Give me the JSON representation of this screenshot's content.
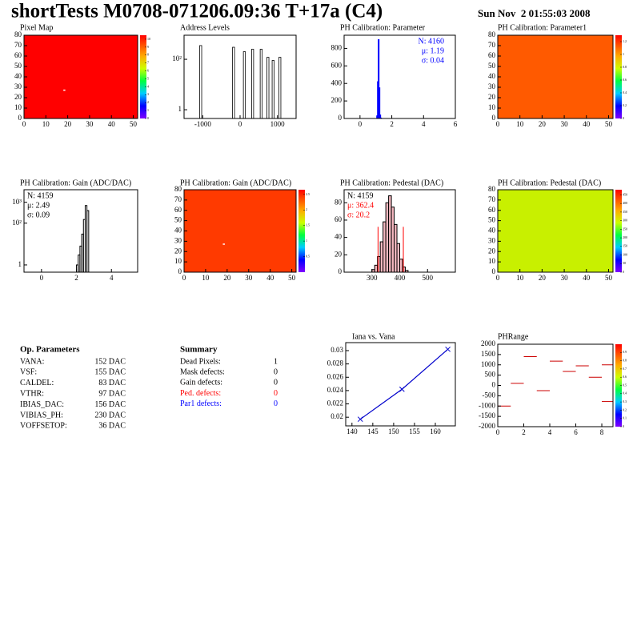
{
  "header": {
    "title": "shortTests M0708-071206.09:36 T+17a (C4)",
    "date": "Sun Nov  2 01:55:03 2008"
  },
  "chart_data": [
    {
      "type": "heatmap",
      "title": "Pixel Map",
      "xlim": [
        0,
        52
      ],
      "ylim": [
        0,
        80
      ],
      "xticks": [
        0,
        10,
        20,
        30,
        40,
        50
      ],
      "yticks": [
        0,
        10,
        20,
        30,
        40,
        50,
        60,
        70,
        80
      ],
      "color": "#ff0000",
      "points": [
        [
          18,
          27
        ]
      ],
      "zlim": [
        0,
        10.5
      ],
      "zticks": [
        0,
        1,
        2,
        3,
        4,
        5,
        6,
        7,
        8,
        9,
        10
      ]
    },
    {
      "type": "spikes",
      "title": "Address Levels",
      "log": true,
      "xlim": [
        -1500,
        1500
      ],
      "ylim": [
        0.45,
        900
      ],
      "xticks": [
        -1000,
        0,
        1000
      ],
      "yticks": [
        1,
        {
          "value": 100,
          "label": "10²"
        }
      ],
      "color": "#000000",
      "x": [
        -1060,
        -180,
        110,
        330,
        560,
        740,
        880,
        1060
      ],
      "values": [
        350,
        300,
        200,
        250,
        250,
        120,
        90,
        120
      ]
    },
    {
      "type": "histogram",
      "title": "PH Calibration: Parameter",
      "xlim": [
        -1,
        6
      ],
      "ylim": [
        0,
        950
      ],
      "xticks": [
        0,
        2,
        4,
        6
      ],
      "yticks": [
        0,
        200,
        400,
        600,
        800
      ],
      "color": "#0000ff",
      "bins": [
        1.05,
        1.1,
        1.15,
        1.2,
        1.25,
        1.3,
        1.35
      ],
      "values": [
        30,
        420,
        900,
        350,
        40,
        5
      ],
      "stats_corner": "right",
      "stats": [
        {
          "text": "N: 4160",
          "color": "#0000ff"
        },
        {
          "text": "μ: 1.19",
          "color": "#0000ff"
        },
        {
          "text": "σ: 0.04",
          "color": "#0000ff"
        }
      ]
    },
    {
      "type": "heatmap",
      "title": "PH Calibration: Parameter1",
      "xlim": [
        0,
        52
      ],
      "ylim": [
        0,
        80
      ],
      "xticks": [
        0,
        10,
        20,
        30,
        40,
        50
      ],
      "yticks": [
        0,
        10,
        20,
        30,
        40,
        50,
        60,
        70,
        80
      ],
      "color": "#ff5a00",
      "zlim": [
        0,
        1.3
      ],
      "zticks": [
        0,
        0.2,
        0.4,
        0.6,
        0.8,
        1,
        1.2
      ]
    },
    {
      "type": "histogram",
      "title": "PH Calibration: Gain (ADC/DAC)",
      "log": true,
      "xlim": [
        -1,
        5.5
      ],
      "ylim": [
        0.45,
        4000
      ],
      "xticks": [
        0,
        2,
        4
      ],
      "yticks": [
        1,
        {
          "value": 100,
          "label": "10²"
        },
        {
          "value": 1000,
          "label": "10³"
        }
      ],
      "color": "#000000",
      "bins": [
        2.0,
        2.1,
        2.2,
        2.3,
        2.4,
        2.5,
        2.6,
        2.7
      ],
      "values": [
        1,
        3,
        8,
        30,
        150,
        700,
        400
      ],
      "stats_corner": "left",
      "stats": [
        {
          "text": "N: 4159",
          "color": "#000000"
        },
        {
          "text": "μ: 2.49",
          "color": "#000000"
        },
        {
          "text": "σ: 0.09",
          "color": "#000000"
        }
      ]
    },
    {
      "type": "heatmap",
      "title": "PH Calibration: Gain (ADC/DAC)",
      "xlim": [
        0,
        52
      ],
      "ylim": [
        0,
        80
      ],
      "xticks": [
        0,
        10,
        20,
        30,
        40,
        50
      ],
      "yticks": [
        0,
        10,
        20,
        30,
        40,
        50,
        60,
        70,
        80
      ],
      "color": "#ff3a00",
      "points": [
        [
          18,
          27
        ]
      ],
      "zlim": [
        0,
        2.65
      ],
      "zticks": [
        0.5,
        1,
        1.5,
        2,
        2.5
      ]
    },
    {
      "type": "histogram",
      "title": "PH Calibration: Pedestal (DAC)",
      "xlim": [
        200,
        600
      ],
      "ylim": [
        0,
        95
      ],
      "xticks": [
        300,
        400,
        500
      ],
      "yticks": [
        0,
        20,
        40,
        60,
        80
      ],
      "color": "#000000",
      "fill": "#f4b8c0",
      "bins": [
        300,
        310,
        320,
        330,
        340,
        350,
        360,
        370,
        380,
        390,
        400,
        410,
        420,
        430
      ],
      "values": [
        3,
        8,
        18,
        35,
        58,
        80,
        88,
        75,
        55,
        33,
        15,
        6,
        2
      ],
      "cuts": [
        322,
        413
      ],
      "cut_color": "#ff0000",
      "stats_corner": "left",
      "stats": [
        {
          "text": "N: 4159",
          "color": "#000000"
        },
        {
          "text": "μ: 362.4",
          "color": "#ff0000"
        },
        {
          "text": "σ: 20.2",
          "color": "#ff0000"
        }
      ]
    },
    {
      "type": "heatmap",
      "title": "PH Calibration: Pedestal (DAC)",
      "xlim": [
        0,
        52
      ],
      "ylim": [
        0,
        80
      ],
      "xticks": [
        0,
        10,
        20,
        30,
        40,
        50
      ],
      "yticks": [
        0,
        10,
        20,
        30,
        40,
        50,
        60,
        70,
        80
      ],
      "color": "#c8f000",
      "zlim": [
        0,
        480
      ],
      "zticks": [
        0,
        50,
        100,
        150,
        200,
        250,
        300,
        350,
        400,
        450
      ]
    },
    {
      "type": "line",
      "title": "Iana vs. Vana",
      "xlim": [
        138.5,
        164.8
      ],
      "ylim": [
        0.0187,
        0.0312
      ],
      "xticks": [
        140,
        145,
        150,
        155,
        160
      ],
      "yticks": [
        0.02,
        0.022,
        0.024,
        0.026,
        0.028,
        0.03
      ],
      "color": "#0000cc",
      "x": [
        142,
        152,
        163
      ],
      "values": [
        0.0197,
        0.0242,
        0.0302
      ]
    },
    {
      "type": "segments",
      "title": "PHRange",
      "xlim": [
        0,
        8.86
      ],
      "ylim": [
        -2000,
        2000
      ],
      "xticks": [
        0,
        2,
        4,
        6,
        8
      ],
      "yticks": [
        -2000,
        -1500,
        -1000,
        -500,
        0,
        500,
        1000,
        1500,
        2000
      ],
      "color": "#cc0000",
      "x": [
        0,
        1,
        2,
        3,
        4,
        5,
        6,
        7,
        8,
        8
      ],
      "values": [
        -1000,
        100,
        1400,
        -250,
        1180,
        680,
        950,
        400,
        -780,
        1000
      ],
      "zlim": [
        0,
        1
      ],
      "zticks": [
        0,
        0.1,
        0.2,
        0.3,
        0.4,
        0.5,
        0.6,
        0.7,
        0.8,
        0.9
      ]
    }
  ],
  "op_parameters": {
    "title": "Op. Parameters",
    "rows": [
      [
        "VANA:",
        "152 DAC"
      ],
      [
        "VSF:",
        "155 DAC"
      ],
      [
        "CALDEL:",
        "83 DAC"
      ],
      [
        "VTHR:",
        "97 DAC"
      ],
      [
        "IBIAS_DAC:",
        "156 DAC"
      ],
      [
        "VIBIAS_PH:",
        "230 DAC"
      ],
      [
        "VOFFSETOP:",
        "36 DAC"
      ]
    ]
  },
  "summary": {
    "title": "Summary",
    "rows": [
      {
        "label": "Dead Pixels:",
        "value": 1,
        "color": "#000000"
      },
      {
        "label": "Mask defects:",
        "value": 0,
        "color": "#000000"
      },
      {
        "label": "Gain defects:",
        "value": 0,
        "color": "#000000"
      },
      {
        "label": "Ped. defects:",
        "value": 0,
        "color": "#ff0000"
      },
      {
        "label": "Par1 defects:",
        "value": 0,
        "color": "#0000ff"
      }
    ]
  }
}
